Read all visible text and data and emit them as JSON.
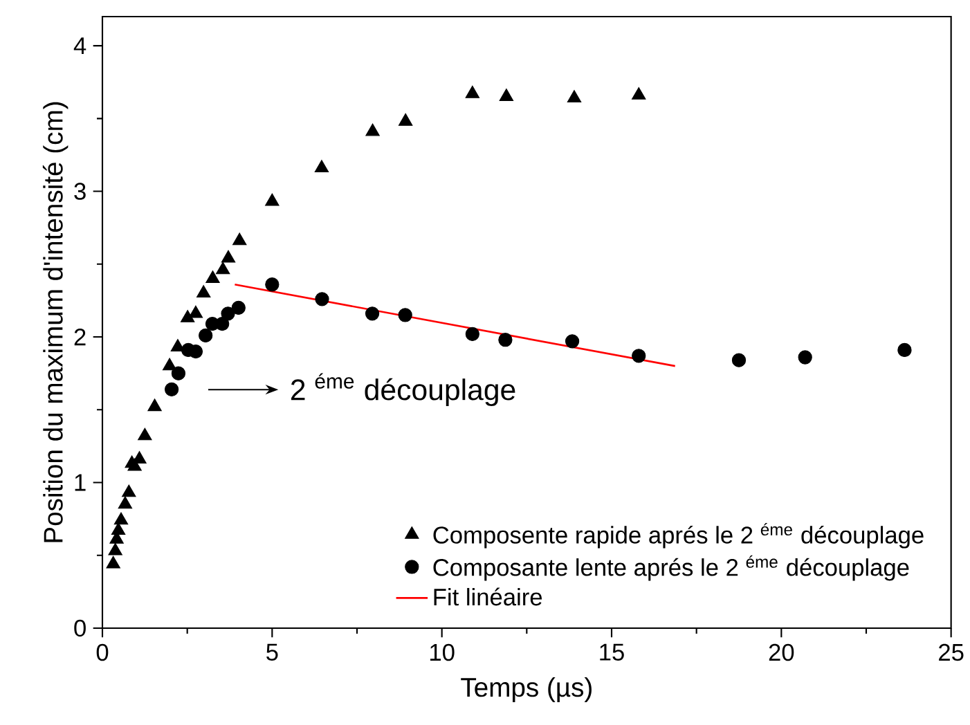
{
  "chart_data": {
    "type": "scatter",
    "xlabel": "Temps (µs)",
    "ylabel": "Position du maximum d'intensité (cm)",
    "xlim": [
      0,
      25
    ],
    "ylim": [
      0,
      4.2
    ],
    "xticks": [
      0,
      5,
      10,
      15,
      20,
      25
    ],
    "yticks": [
      0,
      1,
      2,
      3,
      4
    ],
    "legend": "bottom right",
    "grid": false,
    "annotations": [
      "2 $^{éme}$ découplage"
    ],
    "series": [
      {
        "name": "Composente rapide aprés le 2 $^{éme}$ découplage",
        "marker": "triangle",
        "color": "#000000",
        "x": [
          0.32,
          0.38,
          0.42,
          0.47,
          0.55,
          0.67,
          0.78,
          0.87,
          0.95,
          1.09,
          1.25,
          1.54,
          1.98,
          2.22,
          2.51,
          2.75,
          2.98,
          3.25,
          3.55,
          3.71,
          4.04,
          5.0,
          6.46,
          7.96,
          8.93,
          10.9,
          11.9,
          13.9,
          15.8
        ],
        "values": [
          0.44,
          0.53,
          0.61,
          0.67,
          0.74,
          0.85,
          0.93,
          1.13,
          1.11,
          1.16,
          1.32,
          1.52,
          1.8,
          1.93,
          2.13,
          2.16,
          2.3,
          2.4,
          2.46,
          2.54,
          2.66,
          2.93,
          3.16,
          3.41,
          3.48,
          3.67,
          3.65,
          3.64,
          3.66
        ]
      },
      {
        "name": "Composante lente aprés le 2 $^{éme}$ découplage",
        "marker": "circle",
        "color": "#000000",
        "x": [
          2.04,
          2.24,
          2.53,
          2.75,
          3.04,
          3.24,
          3.53,
          3.7,
          4.01,
          5.0,
          6.47,
          7.95,
          8.92,
          10.9,
          11.87,
          13.84,
          15.8,
          18.75,
          20.7,
          23.63
        ],
        "values": [
          1.64,
          1.75,
          1.91,
          1.9,
          2.01,
          2.09,
          2.09,
          2.16,
          2.2,
          2.36,
          2.26,
          2.16,
          2.15,
          2.02,
          1.98,
          1.97,
          1.87,
          1.84,
          1.86,
          1.91
        ]
      },
      {
        "name": "Fit linéaire",
        "type": "line",
        "marker": "none",
        "color": "#ff0000",
        "x": [
          3.9,
          16.87
        ],
        "values": [
          2.36,
          1.8
        ]
      }
    ]
  }
}
